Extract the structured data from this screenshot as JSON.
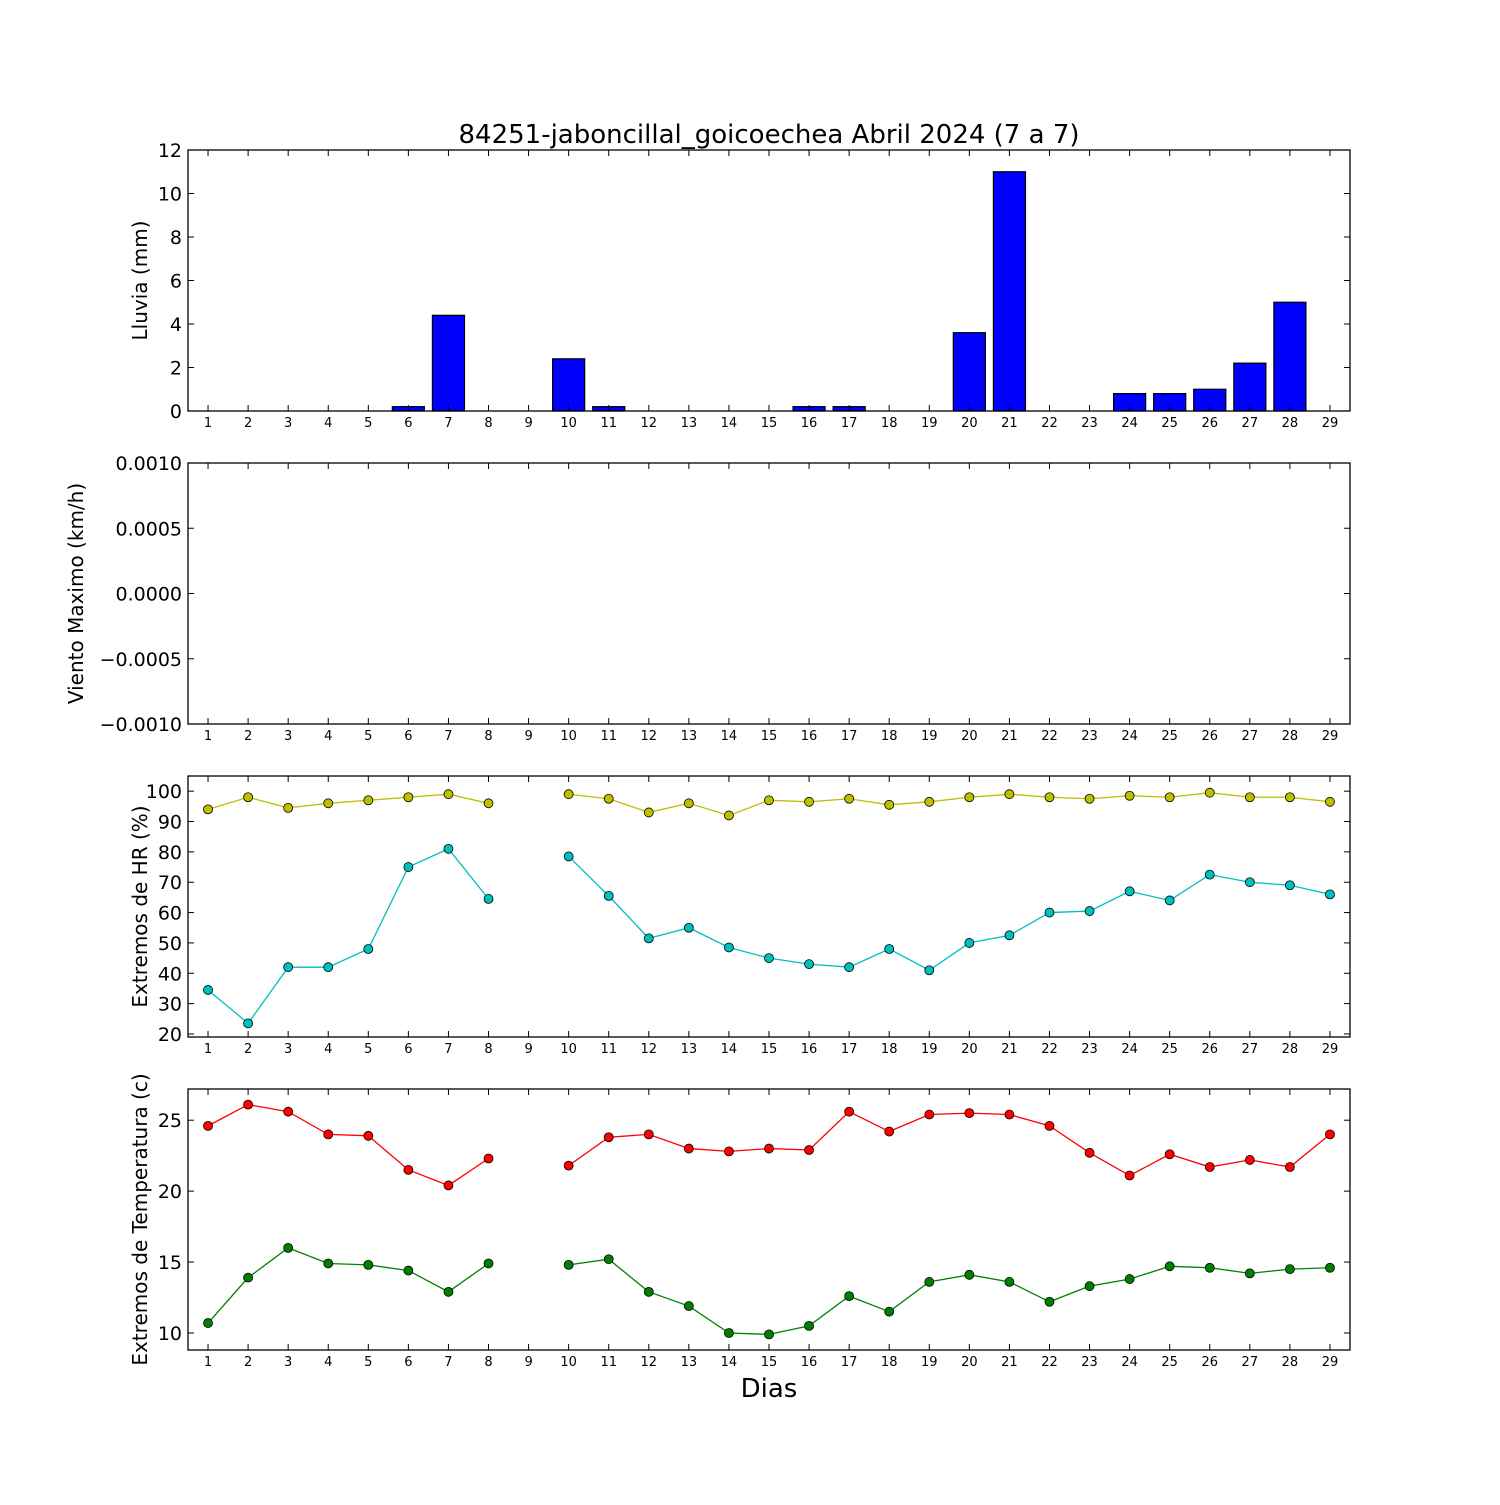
{
  "colors": {
    "rain_bar": "#0000ff",
    "hr_max": "#bfbf00",
    "hr_min": "#00bfbf",
    "temp_max": "#ff0000",
    "temp_min": "#008000"
  },
  "chart_data": [
    {
      "type": "bar",
      "title": "84251-jaboncillal_goicoechea Abril 2024  (7 a 7)",
      "ylabel": "Lluvia (mm)",
      "xlabel": "",
      "categories": [
        1,
        2,
        3,
        4,
        5,
        6,
        7,
        8,
        9,
        10,
        11,
        12,
        13,
        14,
        15,
        16,
        17,
        18,
        19,
        20,
        21,
        22,
        23,
        24,
        25,
        26,
        27,
        28,
        29
      ],
      "values": [
        0,
        0,
        0,
        0,
        0,
        0.2,
        4.4,
        0,
        0,
        2.4,
        0.2,
        0,
        0,
        0,
        0,
        0.2,
        0.2,
        0,
        0,
        3.6,
        11.0,
        0,
        0,
        0.8,
        0.8,
        1.0,
        2.2,
        5.0,
        0
      ],
      "ylim": [
        0,
        12
      ],
      "yticks": [
        "0",
        "2",
        "4",
        "6",
        "8",
        "10",
        "12"
      ],
      "ytick_values": [
        0,
        2,
        4,
        6,
        8,
        10,
        12
      ],
      "xlim": [
        0.5,
        29.5
      ],
      "grid": false
    },
    {
      "type": "line",
      "title": "",
      "ylabel": "Viento Maximo (km/h)",
      "xlabel": "",
      "x": [
        1,
        2,
        3,
        4,
        5,
        6,
        7,
        8,
        9,
        10,
        11,
        12,
        13,
        14,
        15,
        16,
        17,
        18,
        19,
        20,
        21,
        22,
        23,
        24,
        25,
        26,
        27,
        28,
        29
      ],
      "series": [],
      "ylim": [
        -0.001,
        0.001
      ],
      "yticks": [
        "−0.0010",
        "−0.0005",
        "0.0000",
        "0.0005",
        "0.0010"
      ],
      "ytick_values": [
        -0.001,
        -0.0005,
        0,
        0.0005,
        0.001
      ],
      "xlim": [
        0.5,
        29.5
      ],
      "grid": false
    },
    {
      "type": "line",
      "title": "",
      "ylabel": "Extremos de HR (%)",
      "xlabel": "",
      "x": [
        1,
        2,
        3,
        4,
        5,
        6,
        7,
        8,
        9,
        10,
        11,
        12,
        13,
        14,
        15,
        16,
        17,
        18,
        19,
        20,
        21,
        22,
        23,
        24,
        25,
        26,
        27,
        28,
        29
      ],
      "series": [
        {
          "color": "#bfbf00",
          "values": [
            94,
            98,
            94.5,
            96,
            97,
            98,
            99,
            96,
            null,
            99,
            97.5,
            93,
            96,
            92,
            97,
            96.5,
            97.5,
            95.5,
            96.5,
            98,
            99,
            98,
            97.5,
            98.5,
            98,
            99.5,
            98,
            98,
            96.5
          ]
        },
        {
          "color": "#00bfbf",
          "values": [
            34.5,
            23.5,
            42,
            42,
            48,
            75,
            81,
            64.5,
            null,
            78.5,
            65.5,
            51.5,
            55,
            48.5,
            45,
            43,
            42,
            48,
            41,
            50,
            52.5,
            60,
            60.5,
            67,
            64,
            72.5,
            70,
            69,
            66
          ]
        }
      ],
      "ylim": [
        19,
        105
      ],
      "yticks": [
        "20",
        "30",
        "40",
        "50",
        "60",
        "70",
        "80",
        "90",
        "100"
      ],
      "ytick_values": [
        20,
        30,
        40,
        50,
        60,
        70,
        80,
        90,
        100
      ],
      "xlim": [
        0.5,
        29.5
      ],
      "grid": false
    },
    {
      "type": "line",
      "title": "",
      "ylabel": "Extremos de Temperatura (c)",
      "xlabel": "Dias",
      "x": [
        1,
        2,
        3,
        4,
        5,
        6,
        7,
        8,
        9,
        10,
        11,
        12,
        13,
        14,
        15,
        16,
        17,
        18,
        19,
        20,
        21,
        22,
        23,
        24,
        25,
        26,
        27,
        28,
        29
      ],
      "series": [
        {
          "color": "#ff0000",
          "values": [
            24.6,
            26.1,
            25.6,
            24.0,
            23.9,
            21.5,
            20.4,
            22.3,
            null,
            21.8,
            23.8,
            24.0,
            23.0,
            22.8,
            23.0,
            22.9,
            25.6,
            24.2,
            25.4,
            25.5,
            25.4,
            24.6,
            22.7,
            21.1,
            22.6,
            21.7,
            22.2,
            21.7,
            24.0
          ]
        },
        {
          "color": "#008000",
          "values": [
            10.7,
            13.9,
            16.0,
            14.9,
            14.8,
            14.4,
            12.9,
            14.9,
            null,
            14.8,
            15.2,
            12.9,
            11.9,
            10.0,
            9.9,
            10.5,
            12.6,
            11.5,
            13.6,
            14.1,
            13.6,
            12.2,
            13.3,
            13.8,
            14.7,
            14.6,
            14.2,
            14.5,
            14.6
          ]
        }
      ],
      "ylim": [
        8.8,
        27.2
      ],
      "yticks": [
        "10",
        "15",
        "20",
        "25"
      ],
      "ytick_values": [
        10,
        15,
        20,
        25
      ],
      "xlim": [
        0.5,
        29.5
      ],
      "grid": false
    }
  ]
}
